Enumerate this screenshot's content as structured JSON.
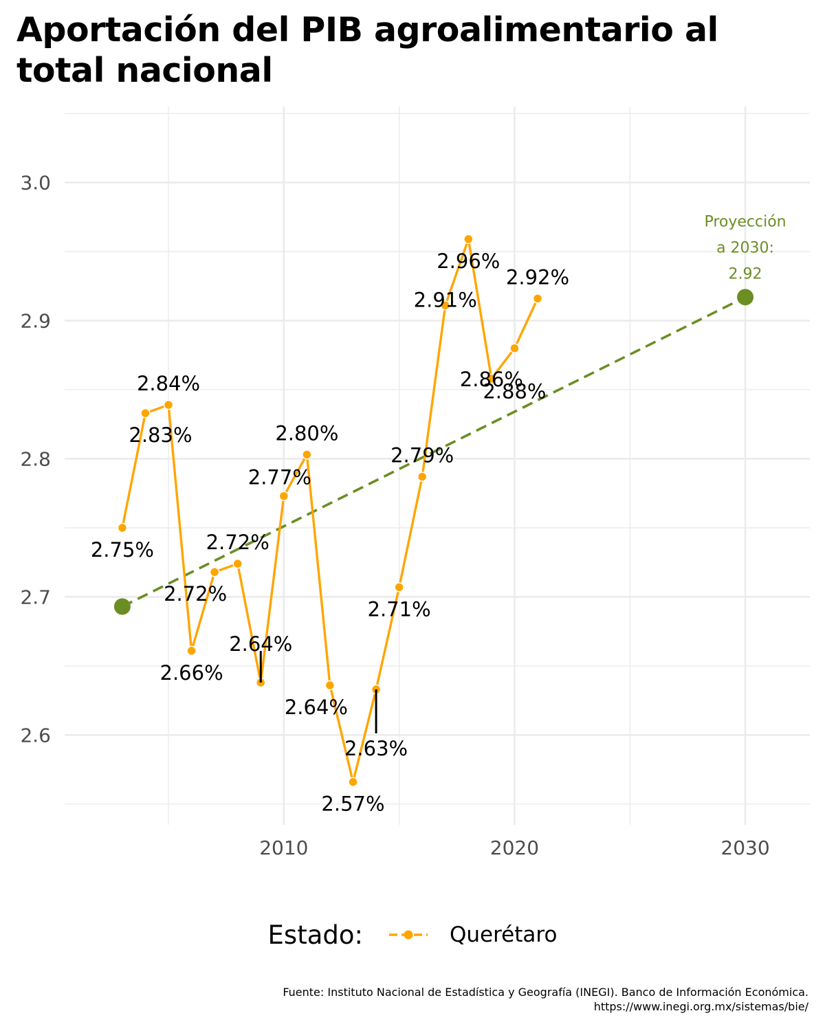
{
  "title": "Aportación del PIB agroalimentario al total nacional",
  "legend": {
    "title": "Estado:",
    "series_label": "Querétaro"
  },
  "caption": {
    "line1": "Fuente: Instituto Nacional de Estadística y Geografía (INEGI). Banco de Información Económica.",
    "line2": "https://www.inegi.org.mx/sistemas/bie/"
  },
  "colors": {
    "series": "#FFA500",
    "projection": "#6B8E23",
    "grid": "#EBEBEB",
    "axis_text": "#4D4D4D"
  },
  "chart_data": {
    "type": "line",
    "xlim": [
      2000.5,
      2032.8
    ],
    "ylim": [
      2.535,
      3.055
    ],
    "x_ticks": [
      2010,
      2020,
      2030
    ],
    "x_tick_labels": [
      "2010",
      "2020",
      "2030"
    ],
    "y_ticks": [
      2.6,
      2.7,
      2.8,
      2.9,
      3.0
    ],
    "y_tick_labels": [
      "2.6",
      "2.7",
      "2.8",
      "2.9",
      "3.0"
    ],
    "grid": true,
    "legend_position": "bottom",
    "series": [
      {
        "name": "Querétaro",
        "x": [
          2003,
          2004,
          2005,
          2006,
          2007,
          2008,
          2009,
          2010,
          2011,
          2012,
          2013,
          2014,
          2015,
          2016,
          2017,
          2018,
          2019,
          2020,
          2021
        ],
        "values": [
          2.75,
          2.833,
          2.839,
          2.661,
          2.718,
          2.724,
          2.638,
          2.773,
          2.803,
          2.636,
          2.566,
          2.633,
          2.707,
          2.787,
          2.911,
          2.959,
          2.858,
          2.88,
          2.916
        ],
        "labels": [
          "2.75%",
          "2.83%",
          "2.84%",
          "2.66%",
          "2.72%",
          "2.72%",
          "2.64%",
          "2.77%",
          "2.80%",
          "2.64%",
          "2.57%",
          "2.63%",
          "2.71%",
          "2.79%",
          "2.91%",
          "2.96%",
          "2.86%",
          "2.88%",
          "2.92%"
        ]
      }
    ],
    "projection": {
      "x": [
        2003,
        2030
      ],
      "values": [
        2.693,
        2.917
      ],
      "annotation": [
        "Proyección",
        "a 2030:",
        "2.92"
      ]
    }
  }
}
